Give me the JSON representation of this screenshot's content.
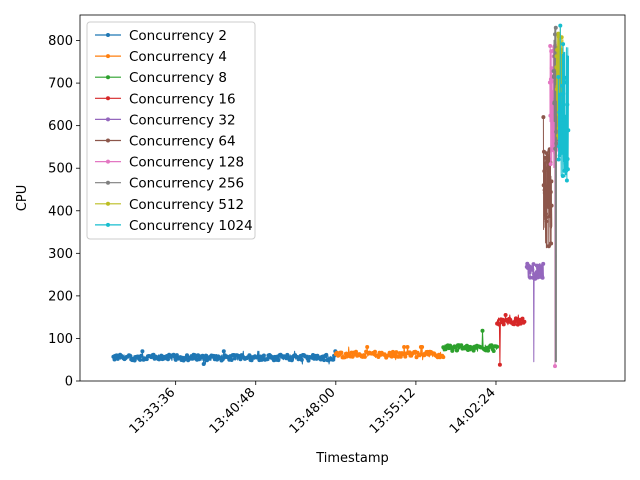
{
  "chart_data": {
    "type": "line",
    "xlabel": "Timestamp",
    "ylabel": "CPU",
    "x_ticks": [
      "13:33:36",
      "13:40:48",
      "13:48:00",
      "13:55:12",
      "14:02:24"
    ],
    "xlim": [
      "13:25:00",
      "14:14:00"
    ],
    "ylim": [
      0,
      860
    ],
    "y_ticks": [
      0,
      100,
      200,
      300,
      400,
      500,
      600,
      700,
      800
    ],
    "legend_position": "upper-left",
    "marker": "dot",
    "series": [
      {
        "name": "Concurrency 2",
        "color": "#1f77b4",
        "x_range": [
          "13:28:00",
          "13:48:00"
        ],
        "base": 55,
        "noise": 7,
        "spikes": [
          [
            40,
            70
          ]
        ]
      },
      {
        "name": "Concurrency 4",
        "color": "#ff7f0e",
        "x_range": [
          "13:48:00",
          "13:57:40"
        ],
        "base": 62,
        "noise": 7,
        "spikes": [
          [
            50,
            80
          ]
        ]
      },
      {
        "name": "Concurrency 8",
        "color": "#2ca02c",
        "x_range": [
          "13:57:40",
          "14:02:30"
        ],
        "base": 78,
        "noise": 8,
        "spikes": [
          [
            40,
            118
          ]
        ]
      },
      {
        "name": "Concurrency 16",
        "color": "#d62728",
        "x_range": [
          "14:02:30",
          "14:05:00"
        ],
        "base": 140,
        "noise": 8,
        "spikes": [
          [
            38,
            155
          ]
        ]
      },
      {
        "name": "Concurrency 32",
        "color": "#9467bd",
        "x_range": [
          "14:05:10",
          "14:06:40"
        ],
        "base": 258,
        "noise": 18,
        "spikes": [
          [
            45,
            362
          ]
        ]
      },
      {
        "name": "Concurrency 64",
        "color": "#8c564b",
        "x_range": [
          "14:06:40",
          "14:07:25"
        ],
        "base": 420,
        "noise": 130,
        "spikes": [
          [
            45,
            620
          ]
        ]
      },
      {
        "name": "Concurrency 128",
        "color": "#e377c2",
        "x_range": [
          "14:07:15",
          "14:07:55"
        ],
        "base": 650,
        "noise": 150,
        "spikes": [
          [
            35,
            815
          ]
        ]
      },
      {
        "name": "Concurrency 256",
        "color": "#7f7f7f",
        "x_range": [
          "14:07:35",
          "14:08:10"
        ],
        "base": 680,
        "noise": 140,
        "spikes": [
          [
            45,
            830
          ]
        ]
      },
      {
        "name": "Concurrency 512",
        "color": "#bcbd22",
        "x_range": [
          "14:07:50",
          "14:08:25"
        ],
        "base": 700,
        "noise": 130,
        "spikes": [
          [
            45,
            845
          ]
        ]
      },
      {
        "name": "Concurrency 1024",
        "color": "#17becf",
        "x_range": [
          "14:08:00",
          "14:08:55"
        ],
        "base": 640,
        "noise": 170,
        "spikes": [
          [
            40,
            835
          ]
        ]
      }
    ]
  }
}
